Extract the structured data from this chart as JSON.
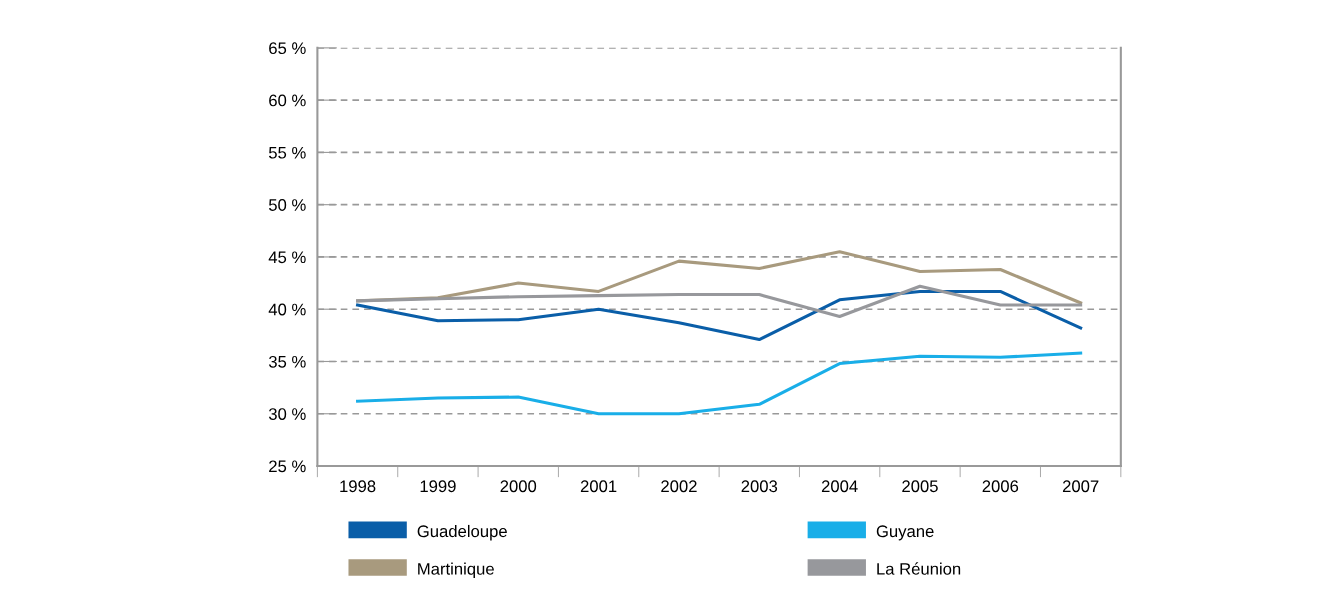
{
  "chart_data": {
    "type": "line",
    "categories": [
      "1998",
      "1999",
      "2000",
      "2001",
      "2002",
      "2003",
      "2004",
      "2005",
      "2006",
      "2007"
    ],
    "series": [
      {
        "name": "Guadeloupe",
        "color": "#0a5ea8",
        "values": [
          40.4,
          38.9,
          39.0,
          40.0,
          38.7,
          37.1,
          40.9,
          41.7,
          41.7,
          38.2
        ]
      },
      {
        "name": "Guyane",
        "color": "#19aee8",
        "values": [
          31.2,
          31.5,
          31.6,
          30.0,
          30.0,
          30.9,
          34.8,
          35.5,
          35.4,
          35.8
        ]
      },
      {
        "name": "Martinique",
        "color": "#a89a7e",
        "values": [
          40.8,
          41.1,
          42.5,
          41.7,
          44.6,
          43.9,
          45.5,
          43.6,
          43.8,
          40.6
        ]
      },
      {
        "name": "La Réunion",
        "color": "#97989c",
        "values": [
          40.8,
          41.0,
          41.2,
          41.3,
          41.4,
          41.4,
          39.3,
          42.2,
          40.4,
          40.4
        ]
      }
    ],
    "ylim": [
      25,
      65
    ],
    "yticks": [
      {
        "value": 25,
        "label": "25 %"
      },
      {
        "value": 30,
        "label": "30 %"
      },
      {
        "value": 35,
        "label": "35 %"
      },
      {
        "value": 40,
        "label": "40 %"
      },
      {
        "value": 45,
        "label": "45 %"
      },
      {
        "value": 50,
        "label": "50 %"
      },
      {
        "value": 55,
        "label": "55 %"
      },
      {
        "value": 60,
        "label": "60 %"
      },
      {
        "value": 65,
        "label": "65 %"
      }
    ],
    "grid": "y",
    "legend": "bottom",
    "marker": "none",
    "line_style": "solid"
  }
}
